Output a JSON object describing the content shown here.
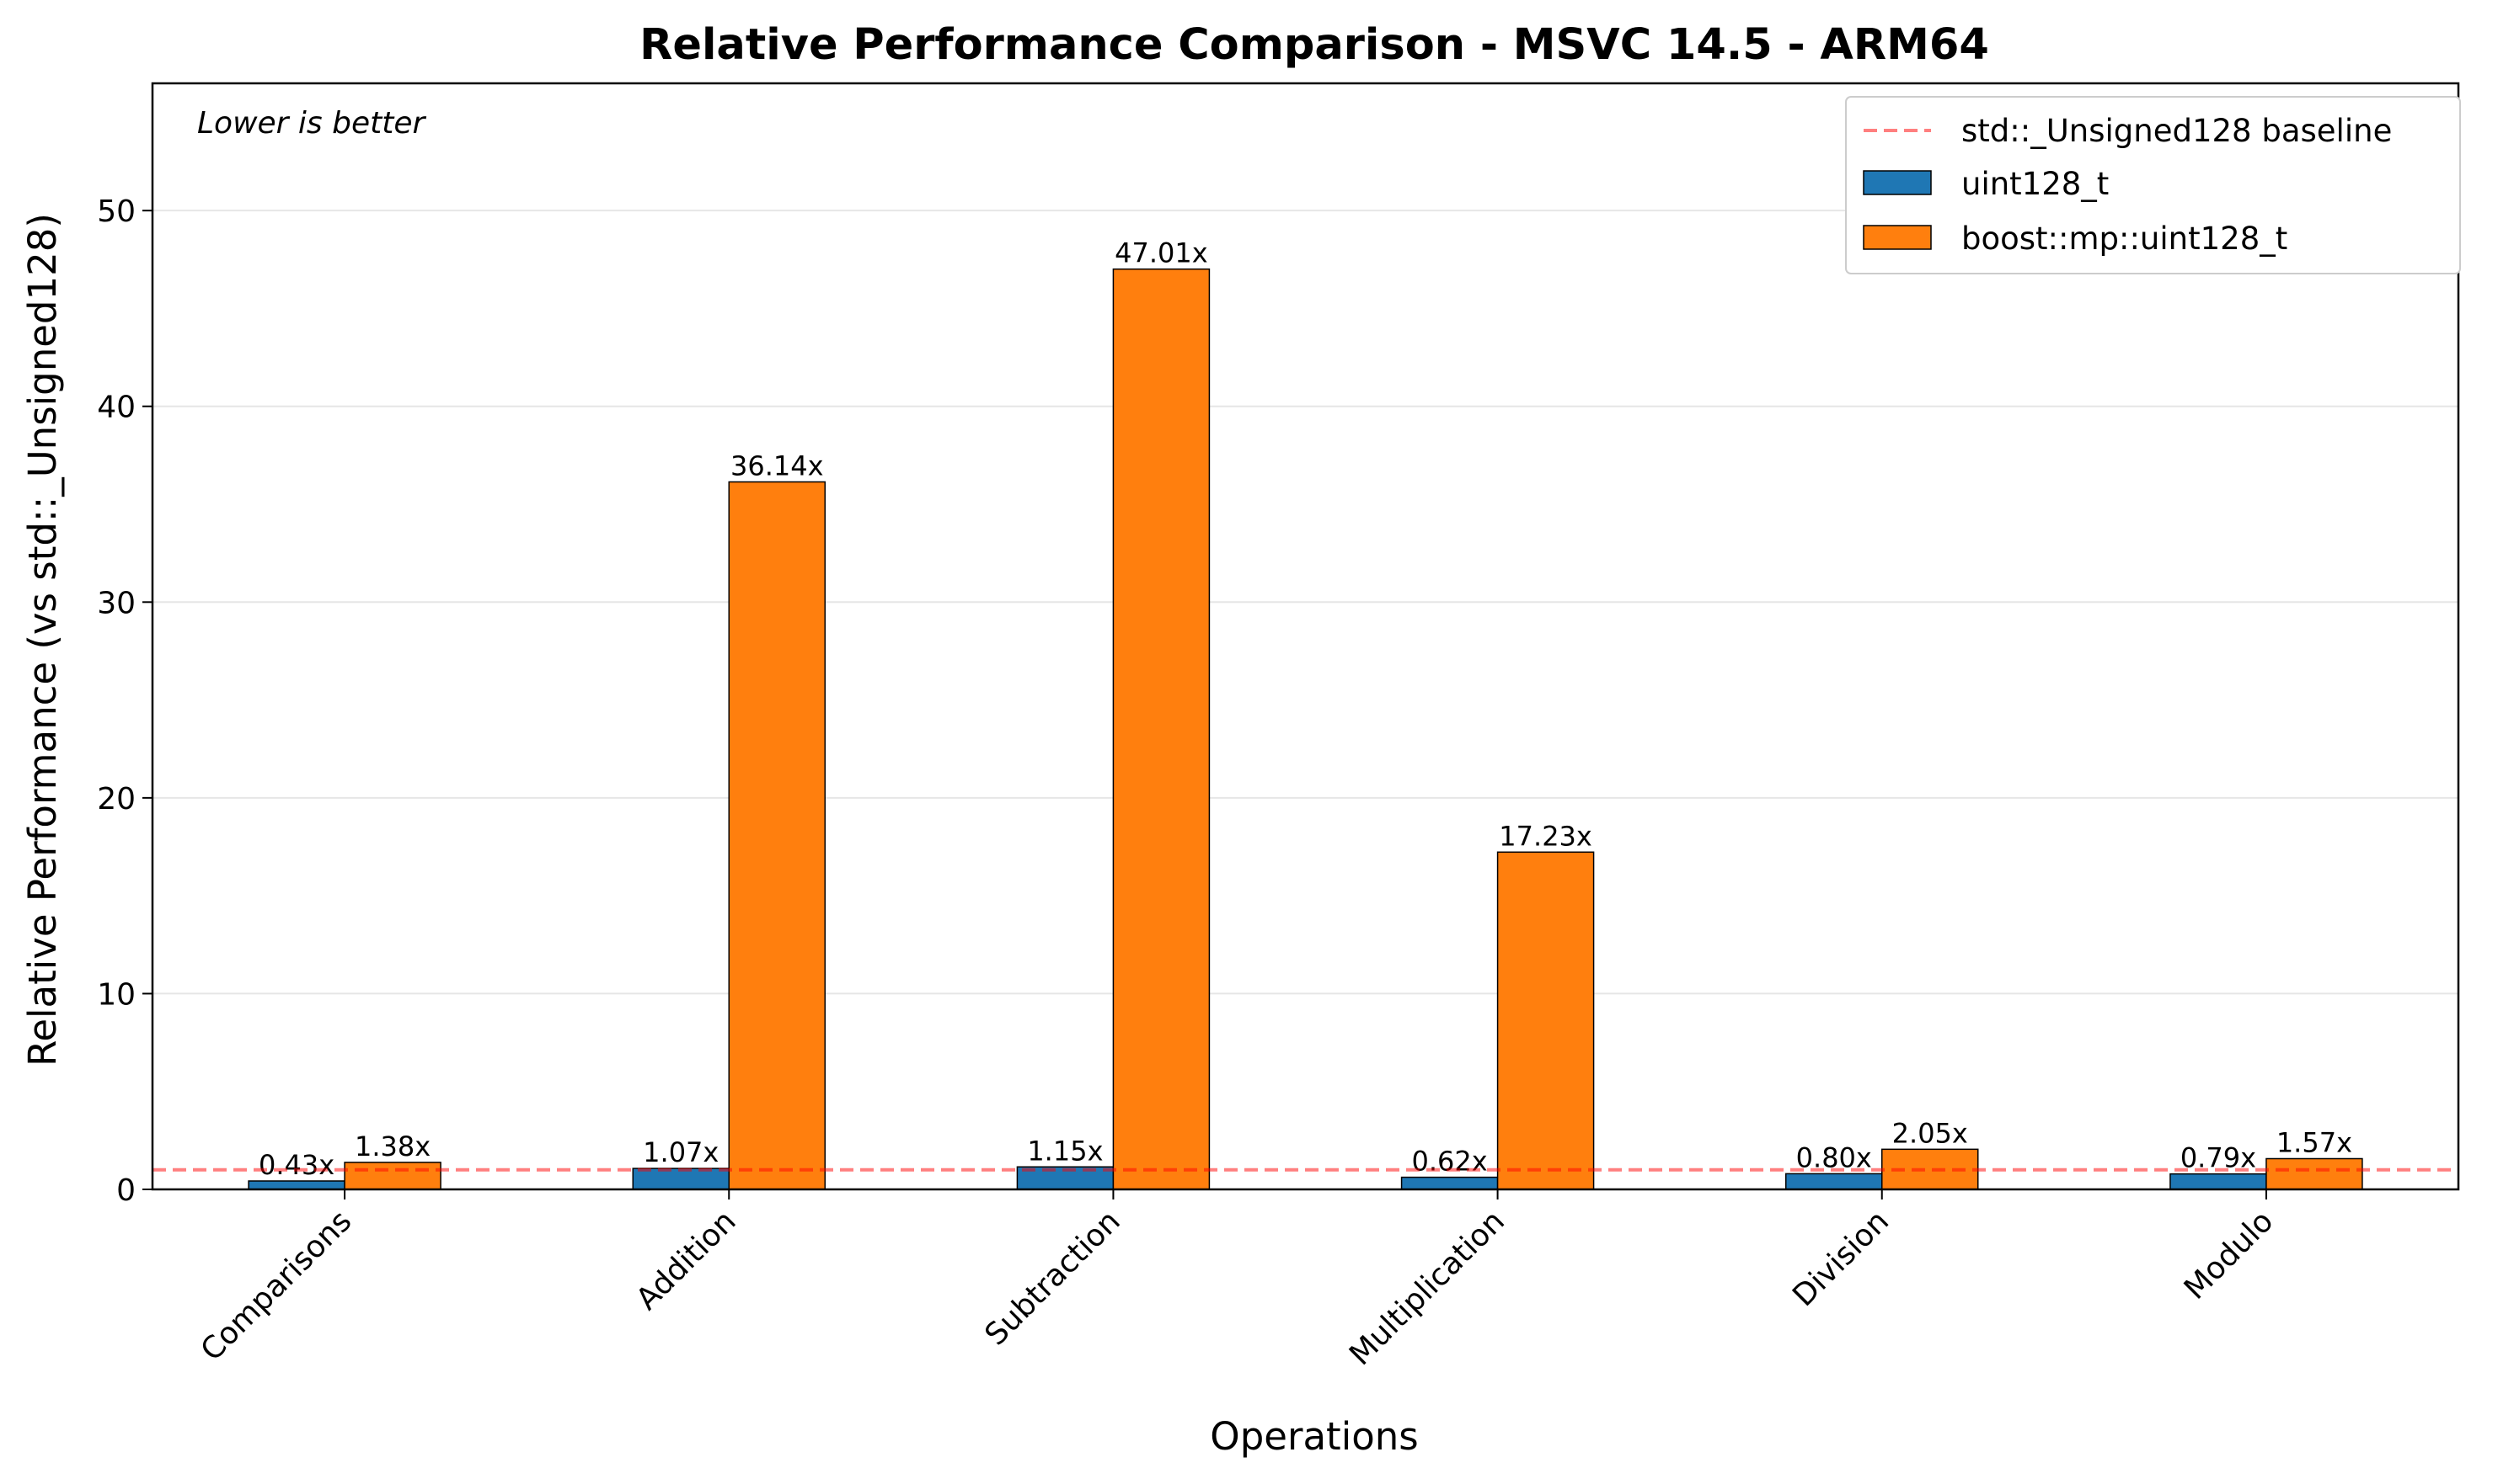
{
  "chart_data": {
    "type": "bar",
    "title": "Relative Performance Comparison - MSVC 14.5 - ARM64",
    "xlabel": "Operations",
    "ylabel": "Relative Performance (vs std::_Unsigned128)",
    "annotation": "Lower is better",
    "categories": [
      "Comparisons",
      "Addition",
      "Subtraction",
      "Multiplication",
      "Division",
      "Modulo"
    ],
    "series": [
      {
        "name": "uint128_t",
        "color": "#1f77b4",
        "values": [
          0.43,
          1.07,
          1.15,
          0.62,
          0.8,
          0.79
        ],
        "labels": [
          "0.43x",
          "1.07x",
          "1.15x",
          "0.62x",
          "0.80x",
          "0.79x"
        ]
      },
      {
        "name": "boost::mp::uint128_t",
        "color": "#ff7f0e",
        "values": [
          1.38,
          36.14,
          47.01,
          17.23,
          2.05,
          1.57
        ],
        "labels": [
          "1.38x",
          "36.14x",
          "47.01x",
          "17.23x",
          "2.05x",
          "1.57x"
        ]
      }
    ],
    "baseline": {
      "name": "std::_Unsigned128 baseline",
      "value": 1.0,
      "color": "#ff0000",
      "style": "dashed"
    },
    "ylim": [
      0,
      56.5
    ],
    "yticks": [
      0,
      10,
      20,
      30,
      40,
      50
    ],
    "grid": "horizontal",
    "legend_position": "top-right"
  }
}
